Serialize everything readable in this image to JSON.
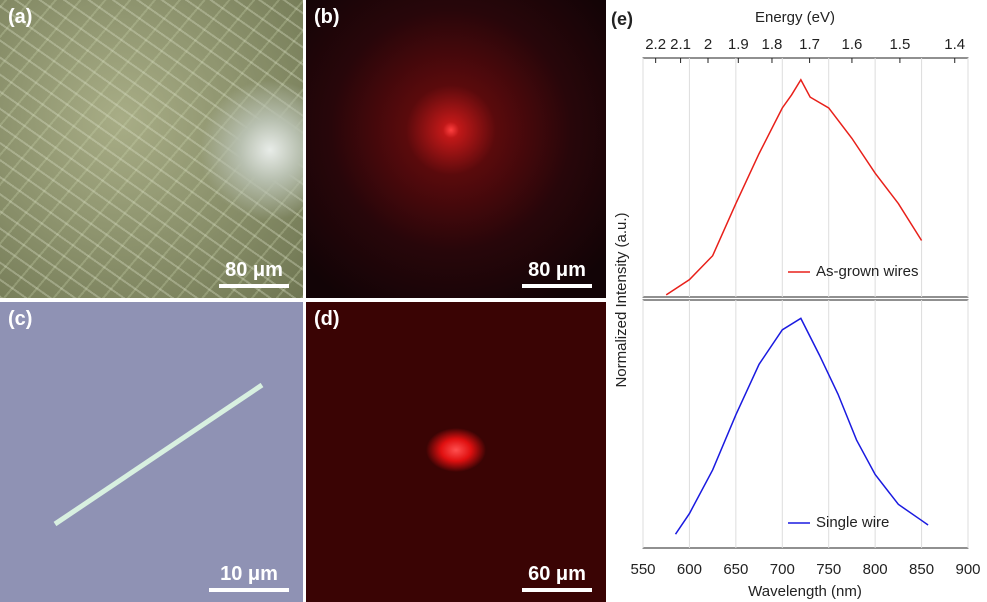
{
  "panels": [
    {
      "label": "(a)",
      "scale_bar": "80 μm"
    },
    {
      "label": "(b)",
      "scale_bar": "80 μm"
    },
    {
      "label": "(c)",
      "scale_bar": "10 μm"
    },
    {
      "label": "(d)",
      "scale_bar": "60 μm"
    }
  ],
  "chart_data": [
    {
      "type": "line",
      "label": "(e)",
      "x2label": "Energy (eV)",
      "ylabel": "Normalized Intensity (a.u.)",
      "x2ticks": [
        2.2,
        2.1,
        2,
        1.9,
        1.8,
        1.7,
        1.6,
        1.5,
        1.4
      ],
      "xlim": [
        550,
        900
      ],
      "xticks": [
        550,
        600,
        650,
        700,
        750,
        800,
        850,
        900
      ],
      "ylim": [
        0,
        1.1
      ],
      "grid": true,
      "legend": "bottom-right",
      "series": [
        {
          "name": "As-grown wires",
          "color": "#e8201a",
          "x": [
            575,
            600,
            625,
            650,
            675,
            700,
            710,
            720,
            730,
            750,
            775,
            800,
            825,
            850
          ],
          "values": [
            0.01,
            0.08,
            0.19,
            0.43,
            0.66,
            0.87,
            0.93,
            1.0,
            0.92,
            0.87,
            0.73,
            0.57,
            0.43,
            0.26
          ]
        }
      ]
    },
    {
      "type": "line",
      "xlabel": "Wavelength (nm)",
      "xlim": [
        550,
        900
      ],
      "xticks": [
        550,
        600,
        650,
        700,
        750,
        800,
        850,
        900
      ],
      "ylim": [
        0,
        1.08
      ],
      "grid": true,
      "legend": "bottom-right",
      "series": [
        {
          "name": "Single wire",
          "color": "#1a1ae0",
          "x": [
            585,
            600,
            625,
            650,
            675,
            700,
            720,
            740,
            760,
            780,
            800,
            825,
            850,
            857
          ],
          "values": [
            0.06,
            0.15,
            0.34,
            0.58,
            0.8,
            0.95,
            1.0,
            0.84,
            0.67,
            0.47,
            0.32,
            0.19,
            0.12,
            0.1
          ]
        }
      ]
    }
  ]
}
